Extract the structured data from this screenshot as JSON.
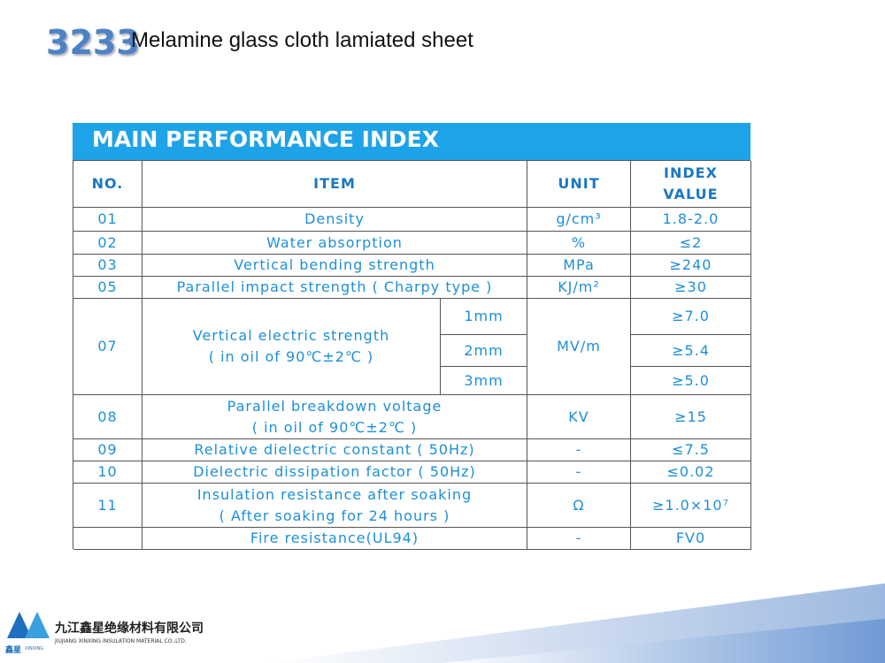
{
  "header": {
    "number": "3233",
    "title": "Melamine glass cloth lamiated sheet"
  },
  "table": {
    "title": "MAIN PERFORMANCE INDEX",
    "columns": [
      "NO.",
      "ITEM",
      "UNIT",
      "INDEX\nVALUE"
    ],
    "rows": [
      {
        "no": "01",
        "item": "Density",
        "unit": "g/cm³",
        "value": "1.8-2.0"
      },
      {
        "no": "02",
        "item": "Water absorption",
        "unit": "%",
        "value": "≤2"
      },
      {
        "no": "03",
        "item": "Vertical bending strength",
        "unit": "MPa",
        "value": "≥240"
      },
      {
        "no": "05",
        "item": "Parallel impact strength ( Charpy type )",
        "unit": "KJ/m²",
        "value": "≥30"
      },
      {
        "no": "07",
        "item": "Vertical electric strength\n( in oil of 90℃±2℃ )",
        "unit": "MV/m",
        "sub": [
          {
            "thickness": "1mm",
            "value": "≥7.0"
          },
          {
            "thickness": "2mm",
            "value": "≥5.4"
          },
          {
            "thickness": "3mm",
            "value": "≥5.0"
          }
        ]
      },
      {
        "no": "08",
        "item": "Parallel breakdown voltage\n( in oil of 90℃±2℃ )",
        "unit": "KV",
        "value": "≥15"
      },
      {
        "no": "09",
        "item": "Relative dielectric constant ( 50Hz)",
        "unit": "-",
        "value": "≤7.5"
      },
      {
        "no": "10",
        "item": "Dielectric dissipation factor ( 50Hz)",
        "unit": "-",
        "value": "≤0.02"
      },
      {
        "no": "11",
        "item": "Insulation resistance after soaking\n( After soaking for 24 hours )",
        "unit": "Ω",
        "value": "≥1.0×10⁷"
      },
      {
        "item": "Fire resistance(UL94)",
        "unit": "-",
        "value": "FV0"
      }
    ]
  },
  "footer": {
    "logo": "鑫星",
    "logo_sub": "XINXING",
    "company": "九江鑫星绝缘材料有限公司",
    "company_en": "JIUJIANG XINXING INSULATION MATERIAL CO.,LTD."
  }
}
